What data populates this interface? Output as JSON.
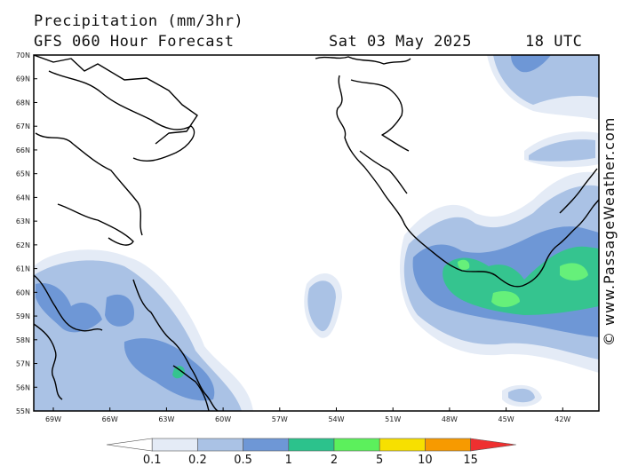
{
  "header": {
    "title": "Precipitation (mm/3hr)",
    "subtitle": "GFS 060 Hour Forecast",
    "date": "Sat 03 May 2025",
    "time": "18 UTC"
  },
  "credit": "© www.PassageWeather.com",
  "map": {
    "lat_labels": [
      "70N",
      "69N",
      "68N",
      "67N",
      "66N",
      "65N",
      "64N",
      "63N",
      "62N",
      "61N",
      "60N",
      "59N",
      "58N",
      "57N",
      "56N",
      "55N"
    ],
    "lon_labels": [
      "69W",
      "66W",
      "63W",
      "60W",
      "57W",
      "54W",
      "51W",
      "48W",
      "45W",
      "42W"
    ],
    "colors": {
      "land_outline": "#000000",
      "p01": "#e4ebf6",
      "p02": "#aac2e5",
      "p05": "#6e97d6",
      "p1": "#35c48f",
      "p2": "#66f07a"
    }
  },
  "colorbar": {
    "labels": [
      "0.1",
      "0.2",
      "0.5",
      "1",
      "2",
      "5",
      "10",
      "15"
    ],
    "colors": [
      "#ffffff",
      "#e4ebf6",
      "#aac2e5",
      "#6e97d6",
      "#2cc28c",
      "#5cf05c",
      "#f7e000",
      "#f79a00",
      "#ee3030"
    ]
  }
}
